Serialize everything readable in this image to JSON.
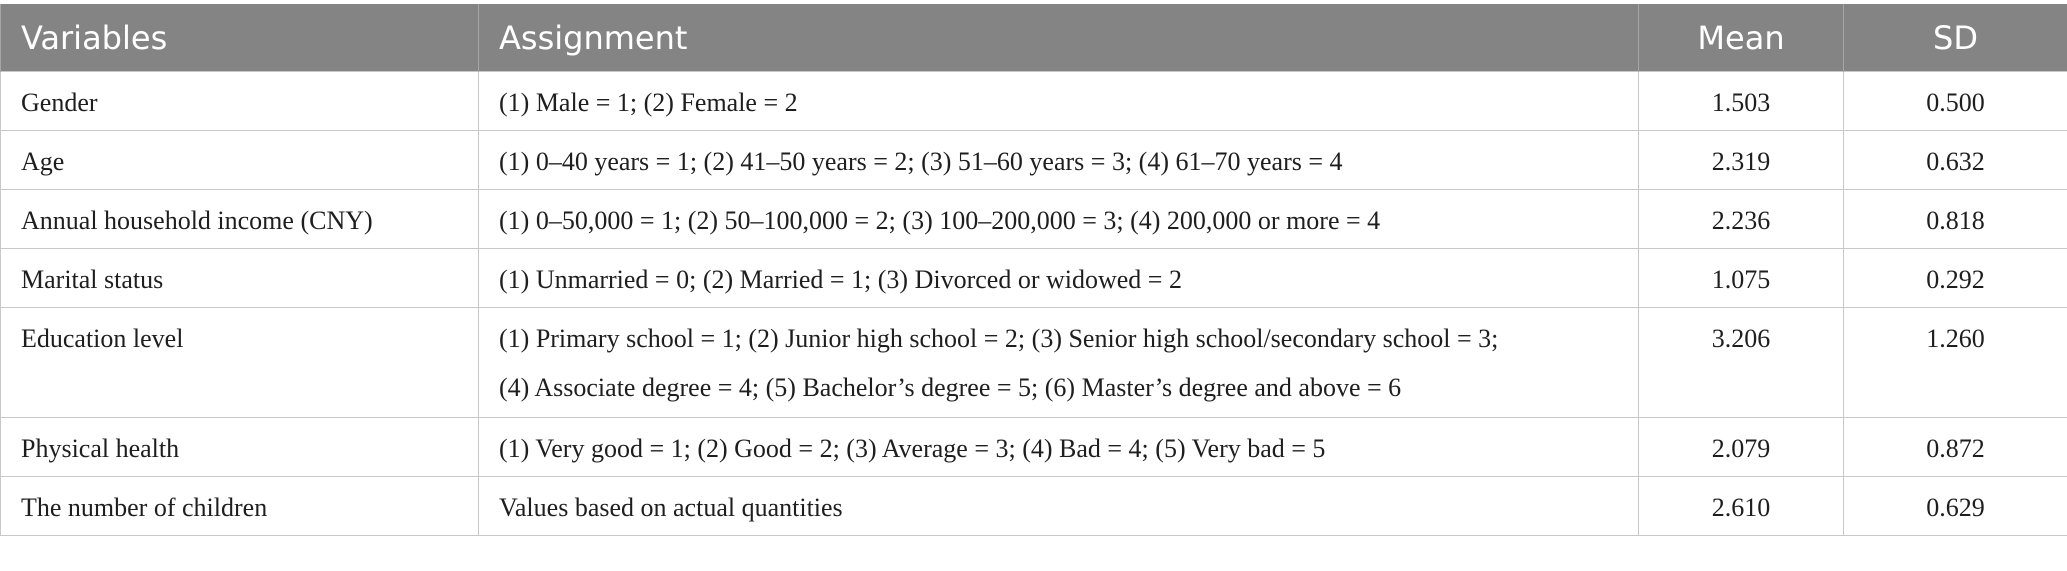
{
  "table": {
    "headers": [
      "Variables",
      "Assignment",
      "Mean",
      "SD"
    ],
    "rows": [
      {
        "variable": "Gender",
        "assignment": [
          "(1) Male = 1; (2) Female = 2"
        ],
        "mean": "1.503",
        "sd": "0.500"
      },
      {
        "variable": "Age",
        "assignment": [
          "(1) 0–40 years = 1; (2) 41–50 years = 2; (3) 51–60 years = 3; (4) 61–70 years = 4"
        ],
        "mean": "2.319",
        "sd": "0.632"
      },
      {
        "variable": "Annual household income (CNY)",
        "assignment": [
          "(1) 0–50,000 = 1; (2) 50–100,000 = 2; (3) 100–200,000 = 3; (4) 200,000 or more = 4"
        ],
        "mean": "2.236",
        "sd": "0.818"
      },
      {
        "variable": "Marital status",
        "assignment": [
          "(1) Unmarried = 0; (2) Married = 1; (3) Divorced or widowed = 2"
        ],
        "mean": "1.075",
        "sd": "0.292"
      },
      {
        "variable": "Education level",
        "assignment": [
          "(1) Primary school = 1; (2) Junior high school = 2; (3) Senior high school/secondary school = 3;",
          "(4) Associate degree = 4; (5) Bachelor’s degree = 5; (6) Master’s degree and above = 6"
        ],
        "mean": "3.206",
        "sd": "1.260"
      },
      {
        "variable": "Physical health",
        "assignment": [
          "(1) Very good = 1; (2) Good = 2; (3) Average = 3; (4) Bad = 4; (5) Very bad = 5"
        ],
        "mean": "2.079",
        "sd": "0.872"
      },
      {
        "variable": "The number of children",
        "assignment": [
          "Values based on actual quantities"
        ],
        "mean": "2.610",
        "sd": "0.629"
      }
    ]
  }
}
